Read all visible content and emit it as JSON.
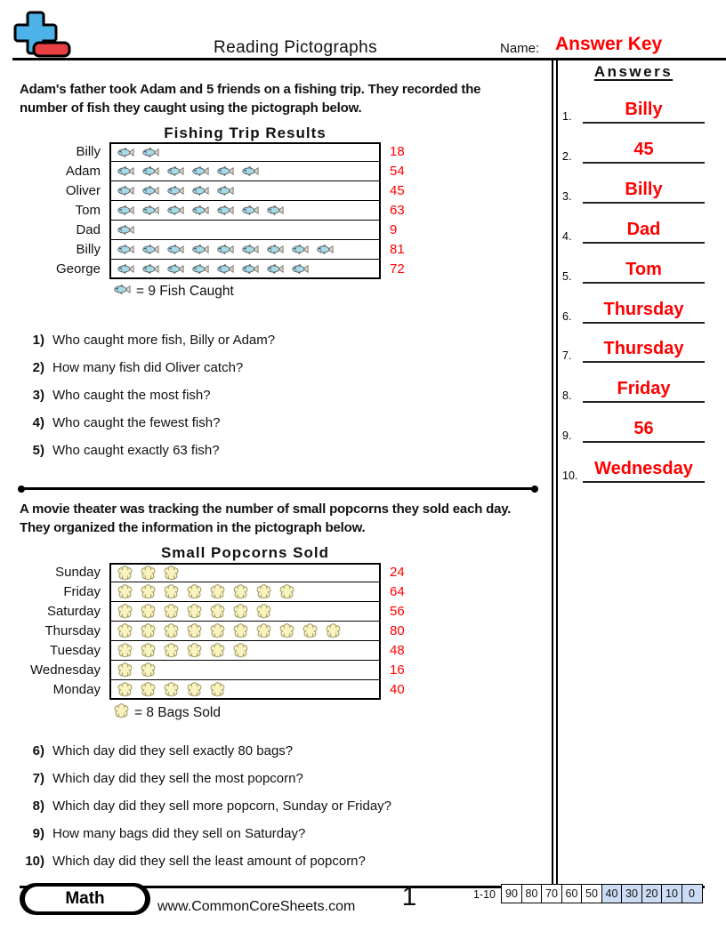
{
  "header": {
    "title": "Reading Pictographs",
    "name_label": "Name:",
    "name_value": "Answer Key",
    "accent_red": "#ff0000",
    "logo": {
      "plus_color": "#4cb2e8",
      "minus_color": "#e84043"
    }
  },
  "answers_panel": {
    "title": "Answers",
    "items": [
      {
        "num": "1.",
        "value": "Billy"
      },
      {
        "num": "2.",
        "value": "45"
      },
      {
        "num": "3.",
        "value": "Billy"
      },
      {
        "num": "4.",
        "value": "Dad"
      },
      {
        "num": "5.",
        "value": "Tom"
      },
      {
        "num": "6.",
        "value": "Thursday"
      },
      {
        "num": "7.",
        "value": "Thursday"
      },
      {
        "num": "8.",
        "value": "Friday"
      },
      {
        "num": "9.",
        "value": "56"
      },
      {
        "num": "10.",
        "value": "Wednesday"
      }
    ]
  },
  "section1": {
    "intro_lines": [
      "Adam's father took Adam and 5 friends on a fishing trip. They recorded the",
      "number of fish they caught using the pictograph below."
    ],
    "questions": [
      {
        "num": "1)",
        "text": "Who caught more fish, Billy or Adam?"
      },
      {
        "num": "2)",
        "text": "How many fish did Oliver catch?"
      },
      {
        "num": "3)",
        "text": "Who caught the most fish?"
      },
      {
        "num": "4)",
        "text": "Who caught the fewest fish?"
      },
      {
        "num": "5)",
        "text": "Who caught exactly 63 fish?"
      }
    ]
  },
  "section2": {
    "intro_lines": [
      "A movie theater was tracking the number of small popcorns they sold each day.",
      "They organized the information in the pictograph below."
    ],
    "questions": [
      {
        "num": "6)",
        "text": "Which day did they sell exactly 80 bags?"
      },
      {
        "num": "7)",
        "text": "Which day did they sell the most popcorn?"
      },
      {
        "num": "8)",
        "text": "Which day did they sell more popcorn, Sunday or Friday?"
      },
      {
        "num": "9)",
        "text": "How many bags did they sell on Saturday?"
      },
      {
        "num": "10)",
        "text": "Which day did they sell the least amount of popcorn?"
      }
    ]
  },
  "chart_data": [
    {
      "type": "pictograph",
      "title": "Fishing Trip Results",
      "icon": "fish",
      "icon_value": 9,
      "legend": "= 9 Fish Caught",
      "categories": [
        "Billy",
        "Adam",
        "Oliver",
        "Tom",
        "Dad",
        "Billy",
        "George"
      ],
      "values": [
        18,
        54,
        45,
        63,
        9,
        81,
        72
      ],
      "icons_per_row": [
        2,
        6,
        5,
        7,
        1,
        9,
        8
      ],
      "value_color": "#ff0000"
    },
    {
      "type": "pictograph",
      "title": "Small Popcorns Sold",
      "icon": "popcorn",
      "icon_value": 8,
      "legend": "= 8 Bags Sold",
      "categories": [
        "Sunday",
        "Friday",
        "Saturday",
        "Thursday",
        "Tuesday",
        "Wednesday",
        "Monday"
      ],
      "values": [
        24,
        64,
        56,
        80,
        48,
        16,
        40
      ],
      "icons_per_row": [
        3,
        8,
        7,
        10,
        6,
        2,
        5
      ],
      "value_color": "#ff0000"
    }
  ],
  "footer": {
    "subject_badge": "Math",
    "website": "www.CommonCoreSheets.com",
    "page_number": "1",
    "score": {
      "range_label": "1-10",
      "shade_color": "#ccdcf5",
      "cells": [
        {
          "text": "90",
          "shaded": false
        },
        {
          "text": "80",
          "shaded": false
        },
        {
          "text": "70",
          "shaded": false
        },
        {
          "text": "60",
          "shaded": false
        },
        {
          "text": "50",
          "shaded": false
        },
        {
          "text": "40",
          "shaded": true
        },
        {
          "text": "30",
          "shaded": true
        },
        {
          "text": "20",
          "shaded": true
        },
        {
          "text": "10",
          "shaded": true
        },
        {
          "text": "0",
          "shaded": true
        }
      ]
    }
  }
}
